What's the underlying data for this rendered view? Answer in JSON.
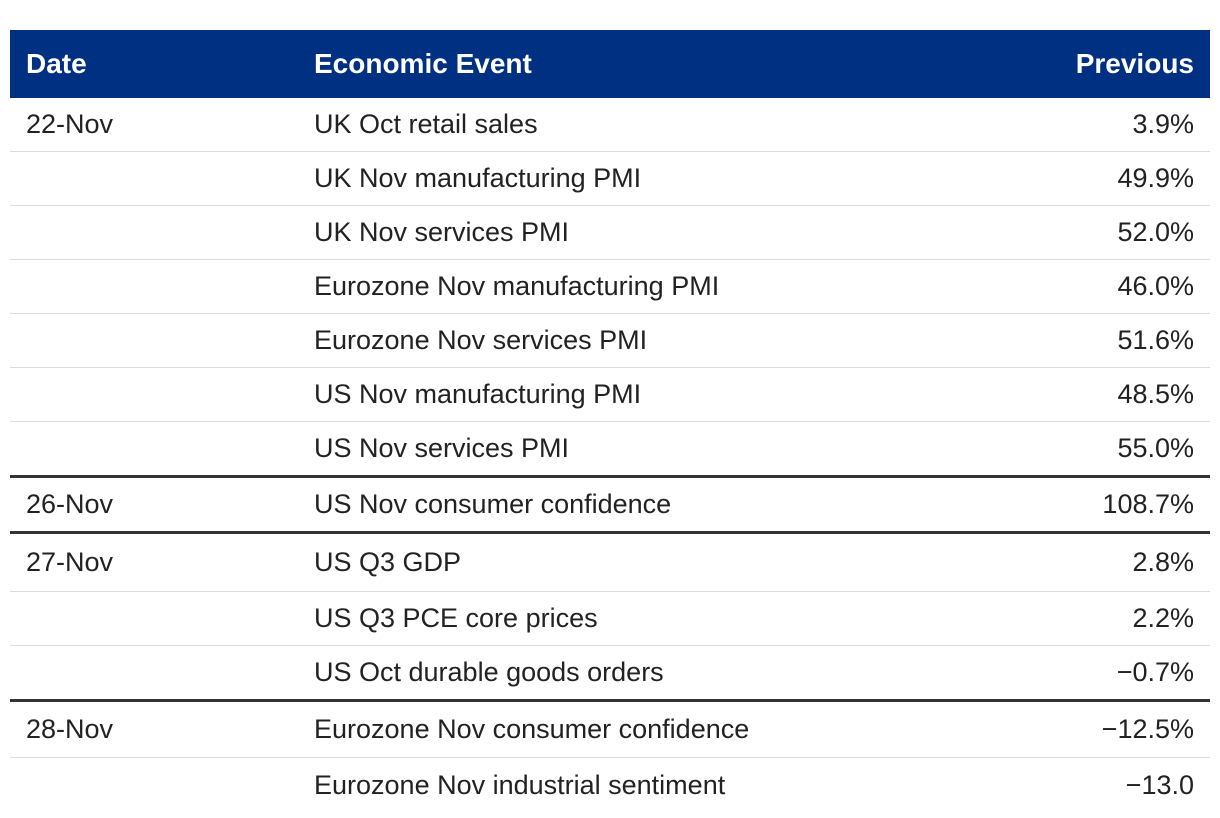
{
  "table": {
    "headers": {
      "date": "Date",
      "event": "Economic Event",
      "previous": "Previous"
    },
    "rows": [
      {
        "date": "22-Nov",
        "event": "UK Oct retail sales",
        "previous": "3.9%"
      },
      {
        "date": "",
        "event": "UK Nov manufacturing PMI",
        "previous": "49.9%"
      },
      {
        "date": "",
        "event": "UK Nov services PMI",
        "previous": "52.0%"
      },
      {
        "date": "",
        "event": "Eurozone Nov manufacturing PMI",
        "previous": "46.0%"
      },
      {
        "date": "",
        "event": "Eurozone Nov services PMI",
        "previous": "51.6%"
      },
      {
        "date": "",
        "event": "US Nov manufacturing PMI",
        "previous": "48.5%"
      },
      {
        "date": "",
        "event": "US Nov services PMI",
        "previous": "55.0%"
      },
      {
        "date": "26-Nov",
        "event": "US Nov consumer confidence",
        "previous": "108.7%"
      },
      {
        "date": "27-Nov",
        "event": "US Q3 GDP",
        "previous": "2.8%"
      },
      {
        "date": "",
        "event": "US Q3 PCE core prices",
        "previous": "2.2%"
      },
      {
        "date": "",
        "event": "US Oct durable goods orders",
        "previous": "−0.7%"
      },
      {
        "date": "28-Nov",
        "event": "Eurozone Nov consumer confidence",
        "previous": "−12.5%"
      },
      {
        "date": "",
        "event": "Eurozone Nov industrial sentiment",
        "previous": "−13.0"
      }
    ]
  },
  "colors": {
    "header_bg": "#003082",
    "header_text": "#ffffff",
    "row_divider": "#dcdcdc",
    "group_divider": "#333333"
  }
}
